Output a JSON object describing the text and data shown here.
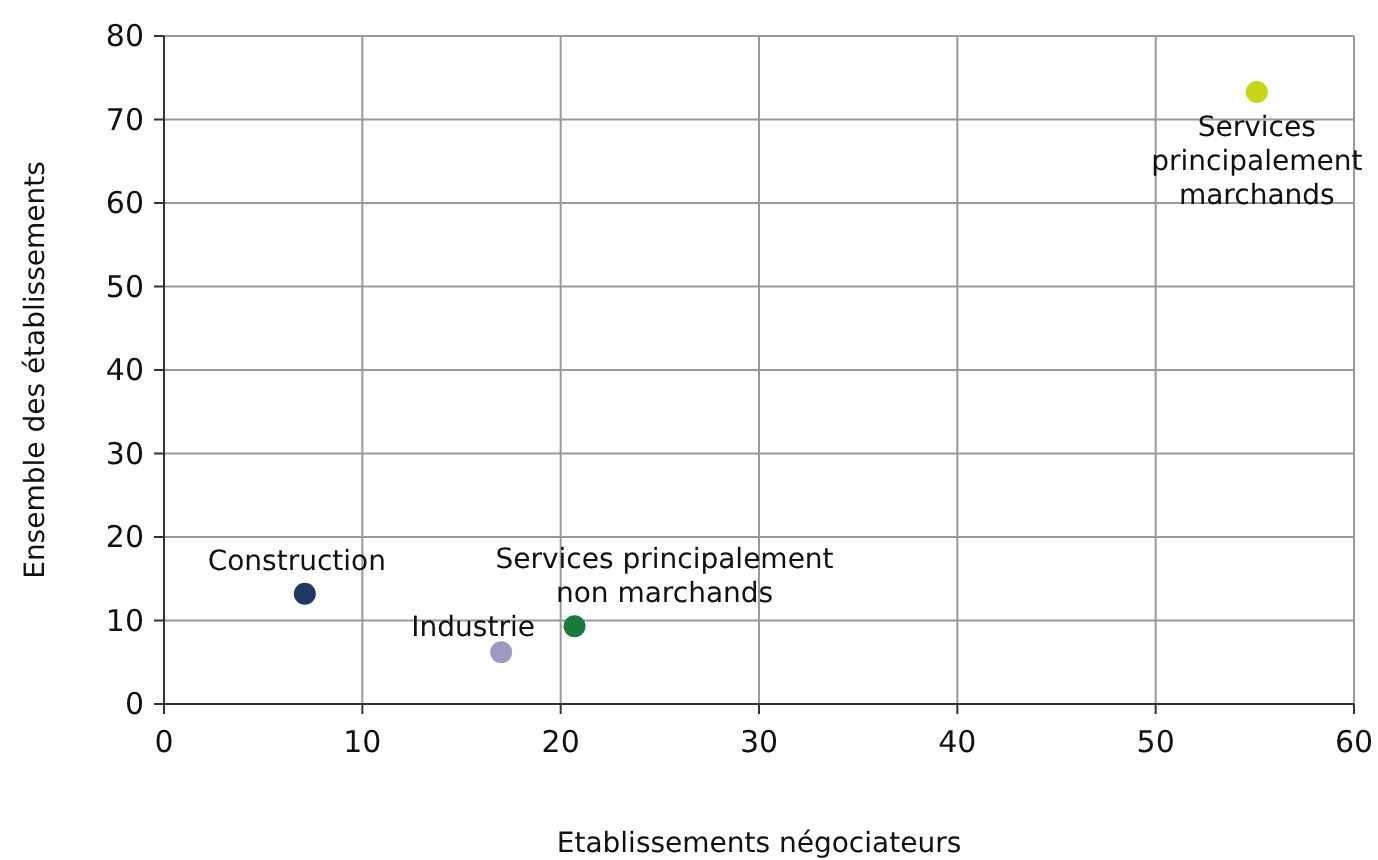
{
  "chart_data": {
    "type": "scatter",
    "xlabel": "Etablissements négociateurs",
    "ylabel": "Ensemble des établissements",
    "xlim": [
      0,
      60
    ],
    "ylim": [
      0,
      80
    ],
    "xticks": [
      0,
      10,
      20,
      30,
      40,
      50,
      60
    ],
    "yticks": [
      0,
      10,
      20,
      30,
      40,
      50,
      60,
      70,
      80
    ],
    "grid": true,
    "marker": "circle",
    "series": [
      {
        "name": "Construction",
        "color": "#1f3864",
        "x": [
          7.1
        ],
        "values": [
          13.2
        ]
      },
      {
        "name": "Industrie",
        "color": "#9b9bbf",
        "x": [
          17.0
        ],
        "values": [
          6.2
        ]
      },
      {
        "name": "Services principalement non marchands",
        "color": "#1a7a3a",
        "x": [
          20.7
        ],
        "values": [
          9.3
        ]
      },
      {
        "name": "Services principalement marchands",
        "color": "#c8d419",
        "x": [
          55.1
        ],
        "values": [
          73.3
        ]
      }
    ]
  }
}
